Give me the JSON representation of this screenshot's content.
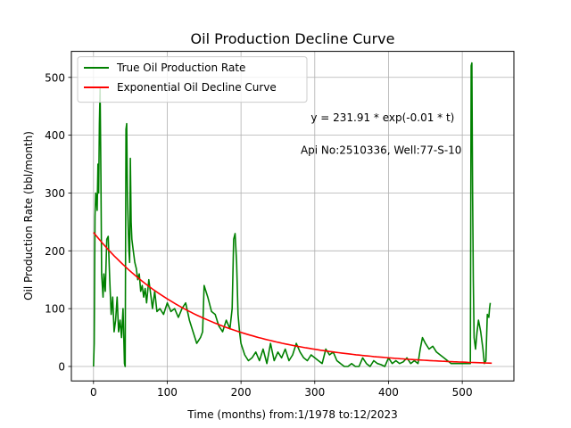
{
  "chart_data": {
    "type": "line",
    "title": "Oil Production Decline Curve",
    "xlabel": "Time (months) from:1/1978 to:12/2023",
    "ylabel": "Oil Production Rate (bbl/month)",
    "xlim": [
      -30,
      570
    ],
    "ylim": [
      -25,
      545
    ],
    "xticks": [
      0,
      100,
      200,
      300,
      400,
      500
    ],
    "yticks": [
      0,
      100,
      200,
      300,
      400,
      500
    ],
    "grid": true,
    "legend_position": "upper-left",
    "annotations": [
      {
        "text": "y = 231.91 * exp(-0.01 * t)",
        "x": 392,
        "y": 430
      },
      {
        "text": "Api No:2510336, Well:77-S-10",
        "x": 390,
        "y": 374
      }
    ],
    "series": [
      {
        "name": "True Oil Production Rate",
        "color": "#008000",
        "x": [
          0,
          1,
          2,
          3,
          4,
          5,
          6,
          7,
          8,
          9,
          10,
          11,
          12,
          13,
          14,
          16,
          18,
          20,
          22,
          24,
          26,
          28,
          30,
          32,
          34,
          36,
          38,
          40,
          42,
          43,
          44,
          45,
          46,
          47,
          48,
          49,
          50,
          51,
          52,
          54,
          56,
          58,
          60,
          62,
          64,
          66,
          68,
          70,
          72,
          75,
          78,
          80,
          83,
          86,
          90,
          95,
          100,
          105,
          110,
          115,
          120,
          125,
          130,
          135,
          140,
          145,
          148,
          150,
          155,
          160,
          165,
          170,
          175,
          180,
          185,
          188,
          190,
          192,
          194,
          196,
          198,
          200,
          205,
          210,
          215,
          220,
          225,
          230,
          235,
          240,
          245,
          250,
          255,
          260,
          265,
          270,
          275,
          280,
          285,
          290,
          295,
          300,
          305,
          310,
          315,
          320,
          325,
          330,
          335,
          340,
          345,
          350,
          355,
          360,
          365,
          370,
          375,
          380,
          385,
          390,
          395,
          400,
          405,
          410,
          415,
          420,
          425,
          430,
          435,
          440,
          443,
          446,
          450,
          455,
          460,
          465,
          470,
          475,
          480,
          485,
          490,
          495,
          500,
          505,
          510,
          511,
          512,
          513,
          514,
          515,
          516,
          518,
          520,
          522,
          525,
          528,
          530,
          532,
          534,
          536,
          537,
          538
        ],
        "values": [
          0,
          40,
          260,
          300,
          290,
          270,
          350,
          300,
          420,
          480,
          330,
          160,
          140,
          120,
          160,
          130,
          220,
          225,
          150,
          90,
          120,
          60,
          80,
          120,
          60,
          80,
          50,
          100,
          5,
          0,
          410,
          420,
          300,
          240,
          200,
          180,
          360,
          250,
          220,
          200,
          180,
          170,
          150,
          160,
          130,
          140,
          120,
          135,
          110,
          150,
          120,
          100,
          130,
          95,
          100,
          90,
          110,
          95,
          100,
          85,
          100,
          110,
          80,
          60,
          40,
          50,
          60,
          140,
          120,
          95,
          90,
          70,
          60,
          80,
          65,
          100,
          220,
          230,
          180,
          90,
          60,
          40,
          20,
          10,
          15,
          25,
          10,
          30,
          5,
          40,
          10,
          25,
          15,
          30,
          10,
          20,
          40,
          25,
          15,
          10,
          20,
          15,
          10,
          5,
          30,
          20,
          25,
          10,
          5,
          0,
          0,
          5,
          0,
          0,
          15,
          5,
          0,
          10,
          5,
          3,
          0,
          15,
          5,
          10,
          5,
          8,
          15,
          5,
          10,
          5,
          30,
          50,
          40,
          30,
          35,
          25,
          20,
          15,
          10,
          5,
          5,
          5,
          5,
          5,
          5,
          5,
          520,
          525,
          300,
          150,
          50,
          30,
          60,
          80,
          60,
          30,
          5,
          10,
          90,
          85,
          100,
          110
        ]
      },
      {
        "name": "Exponential Oil Decline Curve",
        "color": "#ff0000",
        "model": {
          "a": 231.91,
          "b": 0.00685
        },
        "x_start": 0,
        "x_end": 540
      }
    ]
  }
}
